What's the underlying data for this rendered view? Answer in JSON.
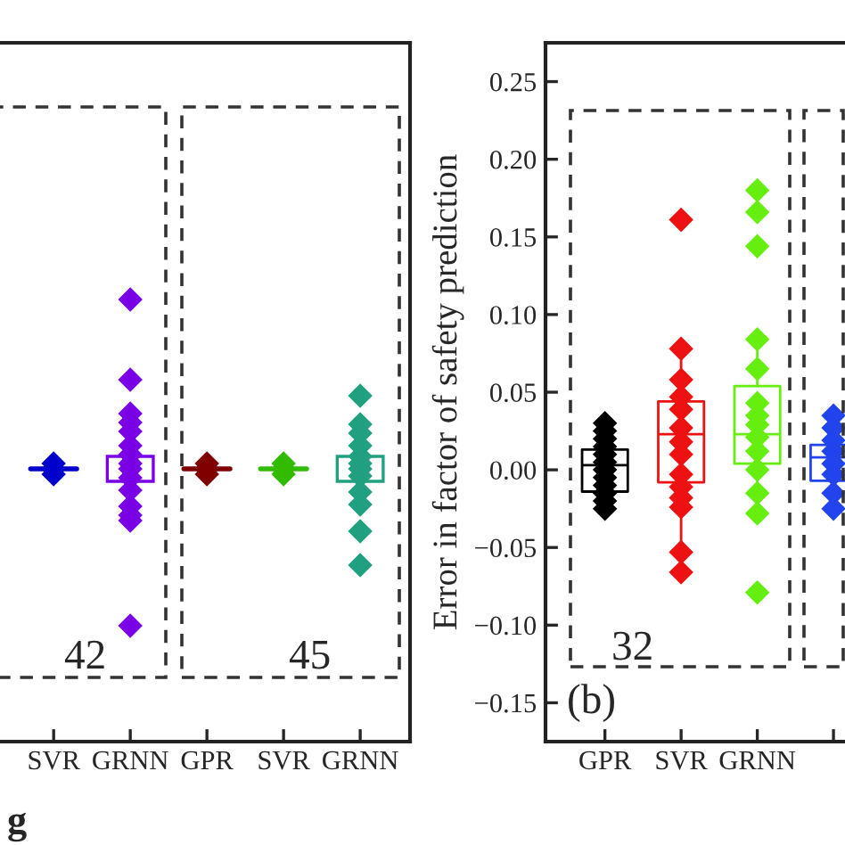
{
  "chart_data": [
    {
      "type": "other",
      "xlabel": "g",
      "categories": [
        "SVR",
        "GRNN",
        "GPR",
        "SVR",
        "GRNN"
      ],
      "colors": [
        "#0000cc",
        "#7a00e6",
        "#800000",
        "#33bb00",
        "#20a080"
      ],
      "annotations": [
        "42",
        "45"
      ]
    },
    {
      "type": "box",
      "ylabel": "Error in factor of safety prediction",
      "categories": [
        "GPR",
        "SVR",
        "GRNN",
        null
      ],
      "colors": [
        "#000000",
        "#ee1111",
        "#66ee11",
        "#2244ee"
      ],
      "marker": "diamond",
      "annotations": [
        "32",
        "(b)"
      ],
      "ylim": [
        -0.175,
        0.275
      ],
      "yticks": [
        {
          "value": -0.15,
          "label": "−0.15"
        },
        {
          "value": -0.1,
          "label": "−0.10"
        },
        {
          "value": -0.05,
          "label": "−0.05"
        },
        {
          "value": 0,
          "label": "0.00"
        },
        {
          "value": 0.05,
          "label": "0.05"
        },
        {
          "value": 0.1,
          "label": "0.10"
        },
        {
          "value": 0.15,
          "label": "0.15"
        },
        {
          "value": 0.2,
          "label": "0.20"
        },
        {
          "value": 0.25,
          "label": "0.25"
        }
      ],
      "boxes": [
        {
          "low": -0.026,
          "q1": -0.014,
          "median": 0.003,
          "q3": 0.013,
          "high": 0.033,
          "outliers": [
            0.03,
            0.025,
            0.02,
            0.015,
            0.01,
            0.005,
            0.0,
            -0.005,
            -0.01,
            -0.015,
            -0.02,
            -0.025
          ]
        },
        {
          "low": -0.066,
          "q1": -0.008,
          "median": 0.023,
          "q3": 0.044,
          "high": 0.078,
          "outliers": [
            0.161,
            0.078,
            0.058,
            0.047,
            0.039,
            0.027,
            0.018,
            0.01,
            -0.003,
            -0.011,
            -0.018,
            -0.024,
            -0.053,
            -0.066
          ]
        },
        {
          "low": -0.028,
          "q1": 0.004,
          "median": 0.023,
          "q3": 0.054,
          "high": 0.084,
          "outliers": [
            0.18,
            0.166,
            0.144,
            0.084,
            0.065,
            0.043,
            0.035,
            0.029,
            0.021,
            0.012,
            0.0,
            -0.015,
            -0.028,
            -0.079
          ]
        },
        {
          "low": -0.025,
          "q1": -0.007,
          "median": 0.008,
          "q3": 0.016,
          "high": 0.035,
          "outliers": [
            0.035,
            0.027,
            0.019,
            0.012,
            0.004,
            -0.003,
            -0.015,
            -0.025
          ]
        }
      ]
    }
  ]
}
